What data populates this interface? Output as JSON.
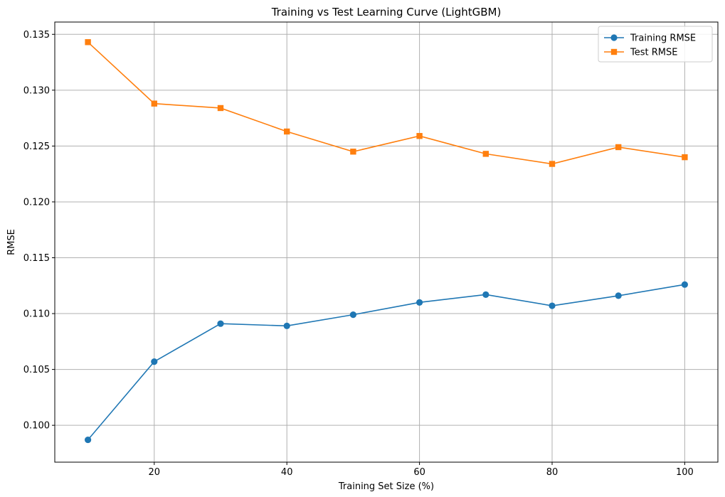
{
  "chart_data": {
    "type": "line",
    "title": "Training vs Test Learning Curve (LightGBM)",
    "xlabel": "Training Set Size (%)",
    "ylabel": "RMSE",
    "x": [
      10,
      20,
      30,
      40,
      50,
      60,
      70,
      80,
      90,
      100
    ],
    "xlim": [
      5,
      105
    ],
    "ylim": [
      0.0967,
      0.1361
    ],
    "xticks": [
      20,
      40,
      60,
      80,
      100
    ],
    "yticks": [
      0.1,
      0.105,
      0.11,
      0.115,
      0.12,
      0.125,
      0.13,
      0.135
    ],
    "ytick_labels": [
      "0.100",
      "0.105",
      "0.110",
      "0.115",
      "0.120",
      "0.125",
      "0.130",
      "0.135"
    ],
    "grid": true,
    "legend_position": "top-right",
    "series": [
      {
        "name": "Training RMSE",
        "color": "#1f77b4",
        "marker": "circle",
        "values": [
          0.0987,
          0.1057,
          0.1091,
          0.1089,
          0.1099,
          0.111,
          0.1117,
          0.1107,
          0.1116,
          0.1126
        ]
      },
      {
        "name": "Test RMSE",
        "color": "#ff7f0e",
        "marker": "square",
        "values": [
          0.1343,
          0.1288,
          0.1284,
          0.1263,
          0.1245,
          0.1259,
          0.1243,
          0.1234,
          0.1249,
          0.124
        ]
      }
    ]
  }
}
